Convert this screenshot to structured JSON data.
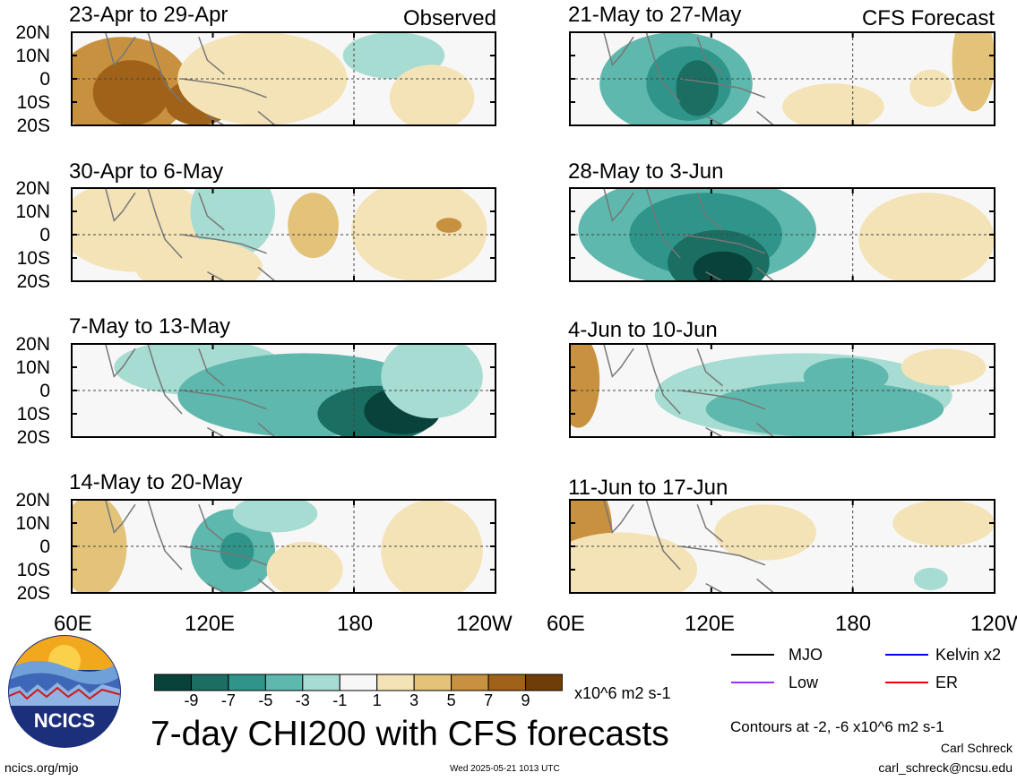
{
  "chart_data": {
    "type": "heatmap",
    "variable": "CHI200",
    "observed_label": "Observed",
    "forecast_label": "CFS Forecast",
    "lat_ticks": [
      "20N",
      "10N",
      "0",
      "10S",
      "20S"
    ],
    "lon_ticks": [
      "60E",
      "120E",
      "180",
      "120W"
    ],
    "panels": [
      {
        "title": "23-Apr to 29-Apr",
        "group": "observed"
      },
      {
        "title": "30-Apr to 6-May",
        "group": "observed"
      },
      {
        "title": "7-May to 13-May",
        "group": "observed"
      },
      {
        "title": "14-May to 20-May",
        "group": "observed"
      },
      {
        "title": "21-May to 27-May",
        "group": "forecast"
      },
      {
        "title": "28-May to 3-Jun",
        "group": "forecast"
      },
      {
        "title": "4-Jun to 10-Jun",
        "group": "forecast"
      },
      {
        "title": "11-Jun to 17-Jun",
        "group": "forecast"
      }
    ],
    "colorbar": {
      "ticks": [
        "-9",
        "-7",
        "-5",
        "-3",
        "-1",
        "1",
        "3",
        "5",
        "7",
        "9"
      ],
      "colors": [
        "#08423a",
        "#1b6e62",
        "#2f958a",
        "#5fb8ad",
        "#a7dcd3",
        "#f7f7f7",
        "#f5e3b8",
        "#e3c27a",
        "#c8913f",
        "#a06218",
        "#6e3d08"
      ],
      "units": "x10^6 m2 s-1"
    },
    "contour_legend": [
      {
        "label": "MJO",
        "color": "#000000"
      },
      {
        "label": "Kelvin x2",
        "color": "#0000ff"
      },
      {
        "label": "Low",
        "color": "#9933ee"
      },
      {
        "label": "ER",
        "color": "#ff0000"
      }
    ],
    "contour_note": "Contours at -2, -6 x10^6 m2 s-1"
  },
  "footer": {
    "logo_text": "NCICS",
    "main_title": "7-day CHI200 with CFS forecasts",
    "site": "ncics.org/mjo",
    "timestamp": "Wed 2025-05-21 1013 UTC",
    "author": "Carl Schreck",
    "email": "carl_schreck@ncsu.edu"
  }
}
